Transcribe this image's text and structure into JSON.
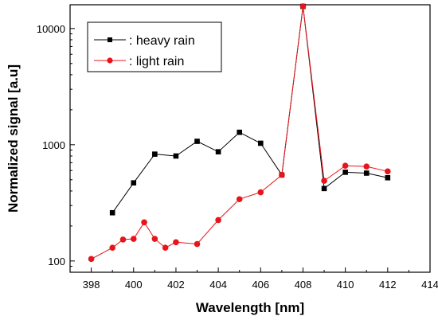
{
  "chart_data": {
    "type": "line",
    "xlabel": "Wavelength [nm]",
    "ylabel": "Normalized signal [a.u]",
    "xlim": [
      397,
      414
    ],
    "ylim": [
      80,
      16000
    ],
    "yscale": "log",
    "x_ticks": [
      398,
      400,
      402,
      404,
      406,
      408,
      410,
      412,
      414
    ],
    "y_ticks": [
      100,
      1000,
      10000
    ],
    "grid": false,
    "legend_position": "top-left",
    "series": [
      {
        "name": ": heavy rain",
        "color": "#000000",
        "marker": "square",
        "x": [
          399,
          400,
          401,
          402,
          403,
          404,
          405,
          406,
          407,
          408,
          409,
          410,
          411,
          412
        ],
        "y": [
          260,
          470,
          830,
          800,
          1070,
          870,
          1280,
          1030,
          550,
          15500,
          420,
          580,
          570,
          520
        ]
      },
      {
        "name": ": light rain",
        "color": "#e8141b",
        "marker": "circle",
        "x": [
          398,
          399,
          399.5,
          400,
          400.5,
          401,
          401.5,
          402,
          403,
          404,
          405,
          406,
          407,
          408,
          409,
          410,
          411,
          412
        ],
        "y": [
          104,
          130,
          153,
          155,
          215,
          155,
          130,
          145,
          140,
          225,
          340,
          390,
          550,
          15500,
          490,
          660,
          650,
          590
        ]
      }
    ]
  }
}
